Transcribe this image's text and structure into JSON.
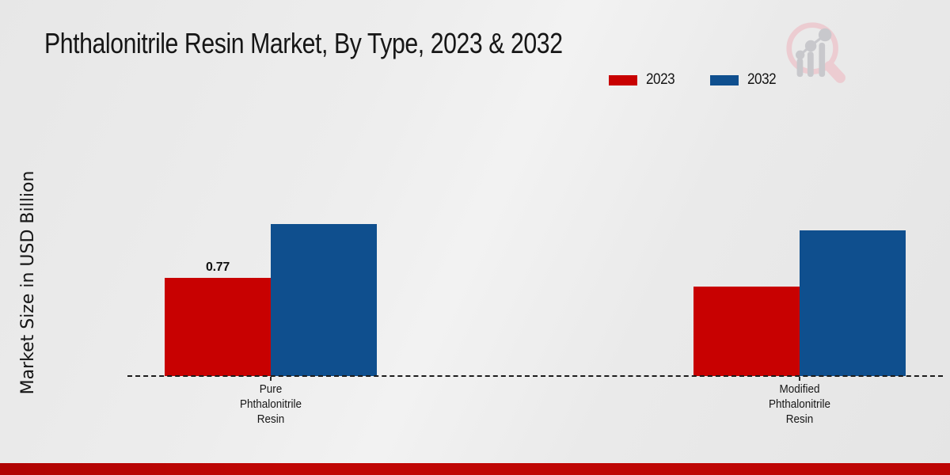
{
  "chart_data": {
    "type": "bar",
    "title": "Phthalonitrile Resin Market, By Type, 2023 & 2032",
    "ylabel": "Market Size in USD Billion",
    "xlabel": "",
    "categories": [
      "Pure Phthalonitrile Resin",
      "Modified Phthalonitrile Resin"
    ],
    "category_label_lines": [
      [
        "Pure",
        "Phthalonitrile",
        "Resin"
      ],
      [
        "Modified",
        "Phthalonitrile",
        "Resin"
      ]
    ],
    "series": [
      {
        "name": "2023",
        "color": "#c80101",
        "values": [
          0.77,
          0.7
        ],
        "data_labels": [
          "0.77",
          ""
        ]
      },
      {
        "name": "2032",
        "color": "#0f4f8e",
        "values": [
          1.19,
          1.14
        ],
        "data_labels": [
          "",
          ""
        ]
      }
    ],
    "ylim": [
      0,
      1.4
    ],
    "grid": false,
    "y_axis_ticks_visible": false,
    "baseline_style": "dashed",
    "legend_position": "top-right"
  },
  "branding": {
    "logo_name": "market-research-magnifier-logo",
    "logo_ring_color": "#ecccd1",
    "logo_bar_color": "#c8c8cc"
  },
  "colors": {
    "accent_red": "#c80101",
    "accent_blue": "#0f4f8e",
    "footer_bar_red": "#bd0504",
    "background": "#ebebeb",
    "text": "#161616"
  }
}
